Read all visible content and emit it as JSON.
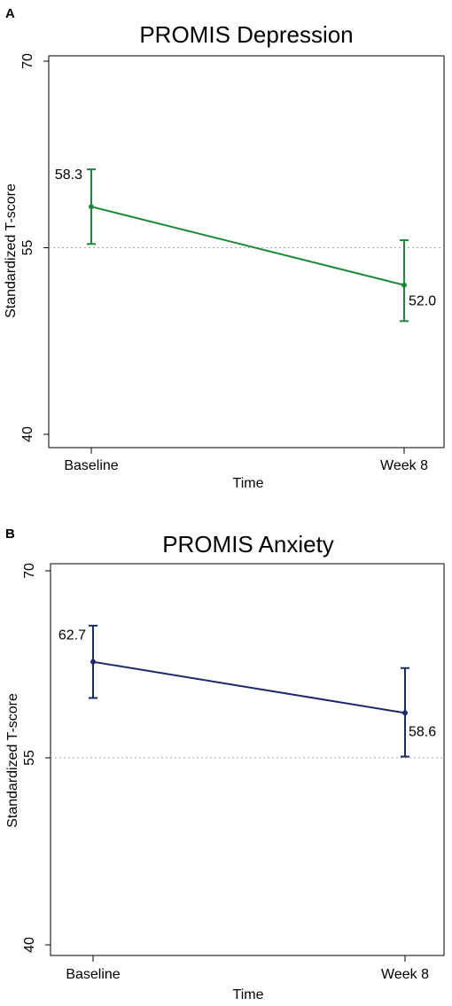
{
  "chart_data": [
    {
      "panel": "A",
      "type": "line",
      "title": "PROMIS Depression",
      "xlabel": "Time",
      "ylabel": "Standardized T-score",
      "categories": [
        "Baseline",
        "Week 8"
      ],
      "ylim": [
        40,
        70
      ],
      "yticks": [
        40,
        55,
        70
      ],
      "reference_line": 55,
      "color": "#1a8a3a",
      "series": [
        {
          "values": [
            58.3,
            52.0
          ],
          "ci_low": [
            55.3,
            49.1
          ],
          "ci_high": [
            61.3,
            55.6
          ],
          "labels": [
            "58.3",
            "52.0"
          ]
        }
      ]
    },
    {
      "panel": "B",
      "type": "line",
      "title": "PROMIS Anxiety",
      "xlabel": "Time",
      "ylabel": "Standardized T-score",
      "categories": [
        "Baseline",
        "Week 8"
      ],
      "ylim": [
        40,
        70
      ],
      "yticks": [
        40,
        55,
        70
      ],
      "reference_line": 55,
      "color": "#1a2a6c",
      "series": [
        {
          "values": [
            62.7,
            58.6
          ],
          "ci_low": [
            59.8,
            55.1
          ],
          "ci_high": [
            65.6,
            62.2
          ],
          "labels": [
            "62.7",
            "58.6"
          ]
        }
      ]
    }
  ]
}
